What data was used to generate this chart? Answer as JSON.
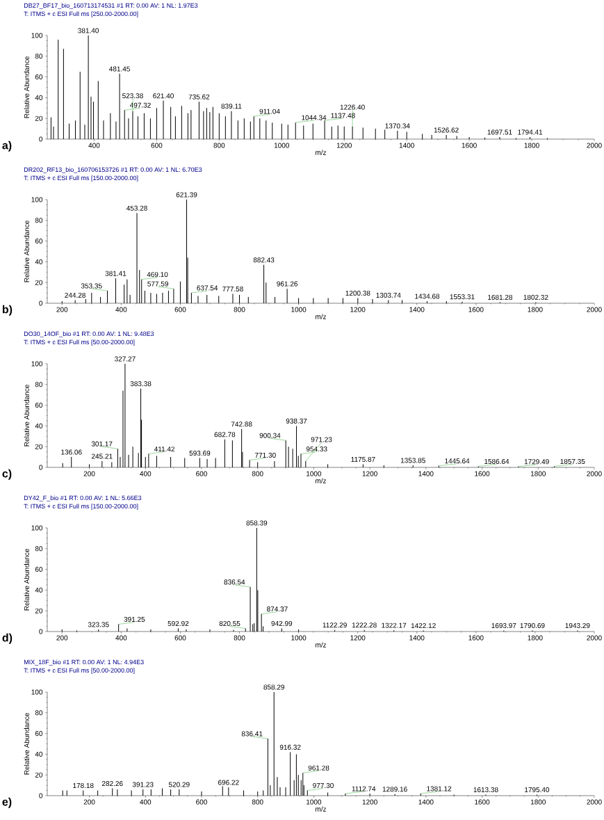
{
  "chart_data": [
    {
      "type": "bar",
      "title": "DB27_BF17_bio_160713174531 #1  RT: 0.00  AV: 1  NL: 1.97E3",
      "subtitle": "T: ITMS + c ESI Full ms [250.00-2000.00]",
      "xlabel": "m/z",
      "ylabel": "Relative Abundance",
      "color": "#000000",
      "xlim": [
        250,
        2000
      ],
      "xticks": [
        400,
        600,
        800,
        1000,
        1200,
        1400,
        1600,
        1800,
        2000
      ],
      "ylim": [
        0,
        100
      ],
      "yticks": [
        0,
        20,
        40,
        60,
        80,
        100
      ],
      "x": [
        262,
        270,
        285,
        302,
        320,
        340,
        355,
        370,
        381.4,
        390,
        398,
        413,
        430,
        452,
        470,
        481.45,
        497.32,
        510,
        523.38,
        540,
        560,
        580,
        600,
        621.4,
        645,
        660,
        680,
        700,
        710,
        735.62,
        750,
        760,
        770,
        780,
        800,
        820,
        839.11,
        860,
        880,
        900,
        911.04,
        930,
        950,
        970,
        1000,
        1020,
        1044.34,
        1070,
        1100,
        1137.48,
        1160,
        1180,
        1200,
        1226.4,
        1260,
        1300,
        1330,
        1370.34,
        1400,
        1450,
        1480,
        1526.62,
        1560,
        1600,
        1650,
        1697.51,
        1750,
        1794.41,
        1850
      ],
      "values": [
        21,
        12,
        96,
        87,
        15,
        18,
        65,
        14,
        100,
        41,
        36,
        56,
        18,
        25,
        17,
        63,
        28,
        20,
        27,
        22,
        25,
        20,
        30,
        37,
        31,
        22,
        32,
        25,
        28,
        36,
        27,
        30,
        26,
        31,
        25,
        22,
        27,
        18,
        20,
        17,
        22,
        20,
        18,
        16,
        15,
        14,
        16,
        13,
        15,
        18,
        12,
        13,
        12,
        12,
        11,
        10,
        9,
        8,
        7,
        5,
        4,
        4,
        3,
        2,
        1.5,
        2,
        1,
        2,
        1
      ],
      "annotations": [
        "a)",
        {
          "text": "381.40",
          "x": 381.4,
          "y": 100
        },
        {
          "text": "481.45",
          "x": 481.45,
          "y": 63
        },
        {
          "text": "497.32",
          "x": 497.32,
          "y": 28
        },
        {
          "text": "523.38",
          "x": 523.38,
          "y": 27
        },
        {
          "text": "621.40",
          "x": 621.4,
          "y": 37
        },
        {
          "text": "735.62",
          "x": 735.62,
          "y": 36
        },
        {
          "text": "839.11",
          "x": 839.11,
          "y": 27
        },
        {
          "text": "911.04",
          "x": 911.04,
          "y": 22
        },
        {
          "text": "1044.34",
          "x": 1044.34,
          "y": 16
        },
        {
          "text": "1137.48",
          "x": 1137.48,
          "y": 18
        },
        {
          "text": "1226.40",
          "x": 1226.4,
          "y": 12
        },
        {
          "text": "1370.34",
          "x": 1370.34,
          "y": 8
        },
        {
          "text": "1526.62",
          "x": 1526.62,
          "y": 4
        },
        {
          "text": "1697.51",
          "x": 1697.51,
          "y": 2
        },
        {
          "text": "1794.41",
          "x": 1794.41,
          "y": 2
        }
      ]
    },
    {
      "type": "bar",
      "title": "DR202_RF13_bio_160706153726 #1  RT: 0.00  AV: 1  NL: 6.70E3",
      "subtitle": "T: ITMS + c ESI Full ms [150.00-2000.00]",
      "xlabel": "m/z",
      "ylabel": "Relative Abundance",
      "color": "#000000",
      "xlim": [
        150,
        2000
      ],
      "xticks": [
        200,
        400,
        600,
        800,
        1000,
        1200,
        1400,
        1600,
        1800,
        2000
      ],
      "ylim": [
        0,
        100
      ],
      "yticks": [
        0,
        20,
        40,
        60,
        80,
        100
      ],
      "x": [
        200,
        244.28,
        280,
        300,
        330,
        353.35,
        381.41,
        410,
        420,
        430,
        453.28,
        462,
        469.1,
        480,
        500,
        520,
        540,
        560,
        577.59,
        600,
        621.39,
        625,
        637.54,
        660,
        690,
        730,
        777.58,
        800,
        830,
        882.43,
        890,
        920,
        961.26,
        1000,
        1050,
        1100,
        1150,
        1200.38,
        1250,
        1303.74,
        1350,
        1434.68,
        1500,
        1553.31,
        1681.28,
        1802.32
      ],
      "values": [
        2,
        3,
        4,
        10,
        6,
        12,
        24,
        18,
        23,
        8,
        87,
        32,
        23,
        12,
        10,
        9,
        10,
        12,
        14,
        21,
        100,
        44,
        10,
        7,
        8,
        7,
        9,
        8,
        6,
        37,
        20,
        6,
        14,
        5,
        5,
        5,
        5,
        5,
        4,
        3,
        3,
        2,
        2,
        1.5,
        1,
        1
      ],
      "annotations": [
        "b)",
        {
          "text": "244.28",
          "x": 244.28,
          "y": 3
        },
        {
          "text": "353.35",
          "x": 353.35,
          "y": 12
        },
        {
          "text": "381.41",
          "x": 381.41,
          "y": 24
        },
        {
          "text": "453.28",
          "x": 453.28,
          "y": 87
        },
        {
          "text": "469.10",
          "x": 469.1,
          "y": 23
        },
        {
          "text": "577.59",
          "x": 577.59,
          "y": 14
        },
        {
          "text": "621.39",
          "x": 621.39,
          "y": 100
        },
        {
          "text": "637.54",
          "x": 637.54,
          "y": 10
        },
        {
          "text": "777.58",
          "x": 777.58,
          "y": 9
        },
        {
          "text": "882.43",
          "x": 882.43,
          "y": 37
        },
        {
          "text": "961.26",
          "x": 961.26,
          "y": 14
        },
        {
          "text": "1200.38",
          "x": 1200.38,
          "y": 5
        },
        {
          "text": "1303.74",
          "x": 1303.74,
          "y": 3
        },
        {
          "text": "1434.68",
          "x": 1434.68,
          "y": 2
        },
        {
          "text": "1553.31",
          "x": 1553.31,
          "y": 1.5
        },
        {
          "text": "1681.28",
          "x": 1681.28,
          "y": 1
        },
        {
          "text": "1802.32",
          "x": 1802.32,
          "y": 1
        }
      ]
    },
    {
      "type": "bar",
      "title": "DO30_14OF_bio #1  RT: 0.00  AV: 1  NL: 9.48E3",
      "subtitle": "T: ITMS + c ESI Full ms [50.00-2000.00]",
      "xlabel": "m/z",
      "ylabel": "Relative Abundance",
      "color": "#000000",
      "xlim": [
        50,
        2000
      ],
      "xticks": [
        200,
        400,
        600,
        800,
        1000,
        1200,
        1400,
        1600,
        1800,
        2000
      ],
      "ylim": [
        0,
        100
      ],
      "yticks": [
        0,
        20,
        40,
        60,
        80,
        100
      ],
      "x": [
        105,
        136.06,
        200,
        245.21,
        280,
        301.17,
        310,
        320,
        327.27,
        340,
        355,
        375,
        383.38,
        386,
        400,
        411.42,
        440,
        490,
        540,
        593.69,
        620,
        650,
        682.78,
        710,
        742.88,
        746,
        771.3,
        800,
        860,
        900.34,
        910,
        925,
        938.37,
        945,
        954.33,
        971.23,
        1050,
        1175.87,
        1250,
        1353.85,
        1445.64,
        1586.64,
        1729.49,
        1857.35
      ],
      "values": [
        4,
        10,
        3,
        6,
        5,
        18,
        10,
        74,
        100,
        12,
        20,
        14,
        76,
        46,
        10,
        13,
        11,
        10,
        9,
        9,
        8,
        9,
        27,
        26,
        37,
        15,
        7,
        5,
        6,
        26,
        20,
        18,
        40,
        11,
        13,
        6,
        3,
        3,
        2,
        2,
        1.5,
        1,
        0.8,
        1
      ],
      "annotations": [
        "c)",
        {
          "text": "136.06",
          "x": 136.06,
          "y": 10
        },
        {
          "text": "245.21",
          "x": 245.21,
          "y": 6
        },
        {
          "text": "301.17",
          "x": 301.17,
          "y": 18
        },
        {
          "text": "327.27",
          "x": 327.27,
          "y": 100
        },
        {
          "text": "383.38",
          "x": 383.38,
          "y": 76
        },
        {
          "text": "411.42",
          "x": 411.42,
          "y": 13
        },
        {
          "text": "593.69",
          "x": 593.69,
          "y": 9
        },
        {
          "text": "682.78",
          "x": 682.78,
          "y": 27
        },
        {
          "text": "742.88",
          "x": 742.88,
          "y": 37
        },
        {
          "text": "771.30",
          "x": 771.3,
          "y": 7
        },
        {
          "text": "900.34",
          "x": 900.34,
          "y": 26
        },
        {
          "text": "938.37",
          "x": 938.37,
          "y": 40
        },
        {
          "text": "954.33",
          "x": 954.33,
          "y": 13
        },
        {
          "text": "971.23",
          "x": 971.23,
          "y": 6
        },
        {
          "text": "1175.87",
          "x": 1175.87,
          "y": 3
        },
        {
          "text": "1353.85",
          "x": 1353.85,
          "y": 2
        },
        {
          "text": "1445.64",
          "x": 1445.64,
          "y": 1.5
        },
        {
          "text": "1586.64",
          "x": 1586.64,
          "y": 1
        },
        {
          "text": "1729.49",
          "x": 1729.49,
          "y": 0.8
        },
        {
          "text": "1857.35",
          "x": 1857.35,
          "y": 1
        }
      ]
    },
    {
      "type": "bar",
      "title": "DY42_F_bio #1  RT: 0.00  AV: 1  NL: 5.66E3",
      "subtitle": "T: ITMS + c ESI Full ms [150.00-2000.00]",
      "xlabel": "m/z",
      "ylabel": "Relative Abundance",
      "color": "#000000",
      "xlim": [
        150,
        2000
      ],
      "xticks": [
        200,
        400,
        600,
        800,
        1000,
        1200,
        1400,
        1600,
        1800,
        2000
      ],
      "ylim": [
        0,
        100
      ],
      "yticks": [
        0,
        20,
        40,
        60,
        80,
        100
      ],
      "x": [
        200,
        250,
        323.35,
        391.25,
        420,
        500,
        592.92,
        620,
        700,
        780,
        820.55,
        836.54,
        845,
        850,
        858.39,
        862,
        874.37,
        880,
        942.99,
        1000,
        1122.29,
        1222.28,
        1322.17,
        1422.12,
        1693.97,
        1790.69,
        1943.29
      ],
      "values": [
        2,
        1,
        2,
        7,
        3,
        2,
        3,
        2,
        2,
        1.5,
        3,
        43,
        7,
        8,
        100,
        40,
        17,
        5,
        3,
        2,
        1.5,
        1.5,
        1.2,
        1,
        1,
        1,
        1
      ],
      "annotations": [
        "d)",
        {
          "text": "323.35",
          "x": 323.35,
          "y": 2
        },
        {
          "text": "391.25",
          "x": 391.25,
          "y": 7
        },
        {
          "text": "592.92",
          "x": 592.92,
          "y": 3
        },
        {
          "text": "820.55",
          "x": 820.55,
          "y": 3
        },
        {
          "text": "836.54",
          "x": 836.54,
          "y": 43
        },
        {
          "text": "858.39",
          "x": 858.39,
          "y": 100
        },
        {
          "text": "874.37",
          "x": 874.37,
          "y": 17
        },
        {
          "text": "942.99",
          "x": 942.99,
          "y": 3
        },
        {
          "text": "1122.29",
          "x": 1122.29,
          "y": 1.5
        },
        {
          "text": "1222.28",
          "x": 1222.28,
          "y": 1.5
        },
        {
          "text": "1322.17",
          "x": 1322.17,
          "y": 1.2
        },
        {
          "text": "1422.12",
          "x": 1422.12,
          "y": 1
        },
        {
          "text": "1693.97",
          "x": 1693.97,
          "y": 1
        },
        {
          "text": "1790.69",
          "x": 1790.69,
          "y": 1
        },
        {
          "text": "1943.29",
          "x": 1943.29,
          "y": 1
        }
      ]
    },
    {
      "type": "bar",
      "title": "MIX_18F_bio #1  RT: 0.00  AV: 1  NL: 4.94E3",
      "subtitle": "T: ITMS + c ESI Full ms [50.00-2000.00]",
      "xlabel": "m/z",
      "ylabel": "Relative Abundance",
      "color": "#000000",
      "xlim": [
        50,
        2000
      ],
      "xticks": [
        200,
        400,
        600,
        800,
        1000,
        1200,
        1400,
        1600,
        1800,
        2000
      ],
      "ylim": [
        0,
        100
      ],
      "yticks": [
        0,
        20,
        40,
        60,
        80,
        100
      ],
      "x": [
        105,
        120,
        178.18,
        230,
        282.26,
        300,
        350,
        391.23,
        420,
        460,
        490,
        520.29,
        600,
        675,
        696.22,
        750,
        800,
        820,
        836.41,
        845,
        858.29,
        870,
        880,
        900,
        916.32,
        930,
        938,
        945,
        955,
        961.28,
        965,
        977.3,
        1050,
        1112.74,
        1200,
        1289.16,
        1381.12,
        1500,
        1613.38,
        1795.4
      ],
      "values": [
        5,
        5,
        5,
        5,
        7,
        6,
        5,
        6,
        6,
        7,
        6,
        6,
        4,
        9,
        8,
        5,
        4,
        5,
        55,
        10,
        100,
        18,
        8,
        8,
        42,
        15,
        40,
        20,
        15,
        22,
        10,
        5,
        3,
        2,
        2,
        1.5,
        2,
        1,
        1,
        1
      ],
      "annotations": [
        "e)",
        {
          "text": "178.18",
          "x": 178.18,
          "y": 5
        },
        {
          "text": "282.26",
          "x": 282.26,
          "y": 7
        },
        {
          "text": "391.23",
          "x": 391.23,
          "y": 6
        },
        {
          "text": "520.29",
          "x": 520.29,
          "y": 6
        },
        {
          "text": "696.22",
          "x": 696.22,
          "y": 8
        },
        {
          "text": "836.41",
          "x": 836.41,
          "y": 55
        },
        {
          "text": "858.29",
          "x": 858.29,
          "y": 100
        },
        {
          "text": "916.32",
          "x": 916.32,
          "y": 42
        },
        {
          "text": "961.28",
          "x": 961.28,
          "y": 22
        },
        {
          "text": "977.30",
          "x": 977.3,
          "y": 5
        },
        {
          "text": "1112.74",
          "x": 1112.74,
          "y": 2
        },
        {
          "text": "1289.16",
          "x": 1289.16,
          "y": 1.5
        },
        {
          "text": "1381.12",
          "x": 1381.12,
          "y": 2
        },
        {
          "text": "1613.38",
          "x": 1613.38,
          "y": 1
        },
        {
          "text": "1795.40",
          "x": 1795.4,
          "y": 1
        }
      ]
    }
  ]
}
